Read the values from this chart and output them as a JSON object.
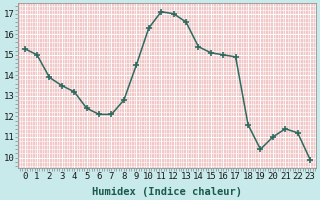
{
  "x": [
    0,
    1,
    2,
    3,
    4,
    5,
    6,
    7,
    8,
    9,
    10,
    11,
    12,
    13,
    14,
    15,
    16,
    17,
    18,
    19,
    20,
    21,
    22,
    23
  ],
  "y": [
    15.3,
    15.0,
    13.9,
    13.5,
    13.2,
    12.4,
    12.1,
    12.1,
    12.8,
    14.5,
    16.3,
    17.1,
    17.0,
    16.6,
    15.4,
    15.1,
    15.0,
    14.9,
    11.6,
    10.4,
    11.0,
    11.4,
    11.2,
    9.9
  ],
  "line_color": "#2d6b60",
  "marker_color": "#2d6b60",
  "outer_bg": "#c8eaea",
  "plot_bg": "#f0c8c8",
  "grid_color": "#ffffff",
  "xlabel": "Humidex (Indice chaleur)",
  "xlim": [
    -0.5,
    23.5
  ],
  "ylim": [
    9.5,
    17.5
  ],
  "yticks": [
    10,
    11,
    12,
    13,
    14,
    15,
    16,
    17
  ],
  "xtick_labels": [
    "0",
    "1",
    "2",
    "3",
    "4",
    "5",
    "6",
    "7",
    "8",
    "9",
    "10",
    "11",
    "12",
    "13",
    "14",
    "15",
    "16",
    "17",
    "18",
    "19",
    "20",
    "21",
    "22",
    "23"
  ],
  "label_fontsize": 7.5,
  "tick_fontsize": 6.5
}
